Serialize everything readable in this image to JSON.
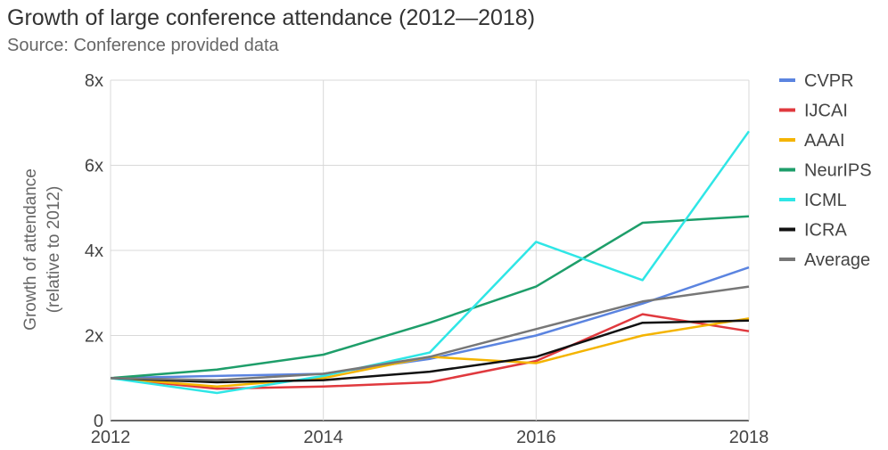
{
  "chart_data": {
    "type": "line",
    "title": "Growth of large conference attendance (2012—2018)",
    "subtitle": "Source: Conference provided data",
    "xlabel": "",
    "ylabel_line1": "Growth of attendance",
    "ylabel_line2": "(relative to 2012)",
    "x": [
      2012,
      2013,
      2014,
      2015,
      2016,
      2017,
      2018
    ],
    "xlim": [
      2012,
      2018
    ],
    "ylim": [
      0,
      8
    ],
    "x_ticks": [
      {
        "value": 2012,
        "label": "2012"
      },
      {
        "value": 2014,
        "label": "2014"
      },
      {
        "value": 2016,
        "label": "2016"
      },
      {
        "value": 2018,
        "label": "2018"
      }
    ],
    "y_ticks": [
      {
        "value": 0,
        "label": "0"
      },
      {
        "value": 2,
        "label": "2x"
      },
      {
        "value": 4,
        "label": "4x"
      },
      {
        "value": 6,
        "label": "6x"
      },
      {
        "value": 8,
        "label": "8x"
      }
    ],
    "grid": true,
    "legend_position": "right",
    "series": [
      {
        "name": "CVPR",
        "color": "#5b84e0",
        "values": [
          1.0,
          1.05,
          1.1,
          1.45,
          2.0,
          2.75,
          3.6
        ]
      },
      {
        "name": "IJCAI",
        "color": "#e0393e",
        "values": [
          1.0,
          0.75,
          0.8,
          0.9,
          1.4,
          2.5,
          2.1
        ]
      },
      {
        "name": "AAAI",
        "color": "#f4b400",
        "values": [
          1.0,
          0.8,
          1.0,
          1.5,
          1.35,
          2.0,
          2.4
        ]
      },
      {
        "name": "NeurIPS",
        "color": "#1e9e6a",
        "values": [
          1.0,
          1.2,
          1.55,
          2.3,
          3.15,
          4.65,
          4.8
        ]
      },
      {
        "name": "ICML",
        "color": "#2fe6e6",
        "values": [
          1.0,
          0.65,
          1.05,
          1.6,
          4.2,
          3.3,
          6.8
        ]
      },
      {
        "name": "ICRA",
        "color": "#111111",
        "values": [
          1.0,
          0.9,
          0.95,
          1.15,
          1.5,
          2.3,
          2.35
        ]
      },
      {
        "name": "Average",
        "color": "#777777",
        "values": [
          1.0,
          0.95,
          1.1,
          1.5,
          2.15,
          2.8,
          3.15
        ]
      }
    ]
  }
}
